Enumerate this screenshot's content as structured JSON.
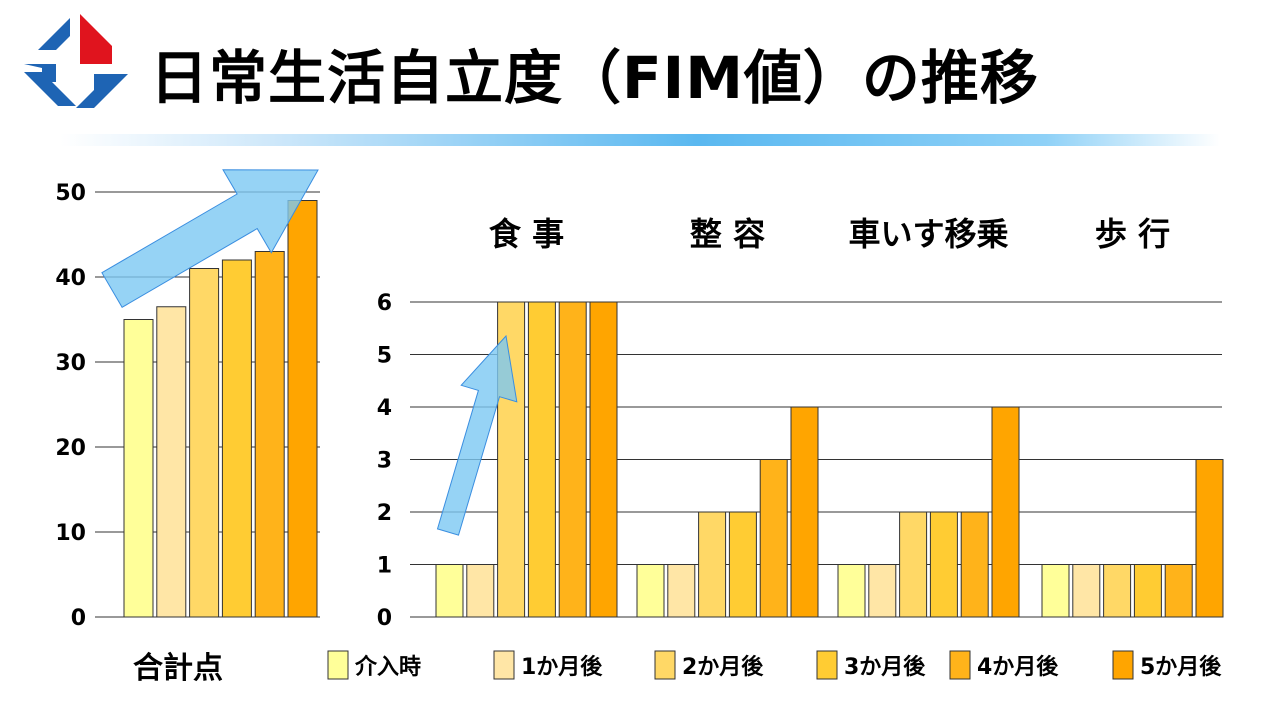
{
  "slide": {
    "title": "日常生活自立度（FIM値）の推移"
  },
  "logo": {
    "icon": "medical-cross-logo-icon",
    "colors": [
      "#e0141e",
      "#1e64b4"
    ]
  },
  "colors": {
    "series": [
      "#ffff99",
      "#ffe6a6",
      "#ffd866",
      "#ffcc33",
      "#ffb31a",
      "#ffa500"
    ],
    "bar_stroke": "#333333",
    "grid": "#333333",
    "arrow_fill": "#7cc8f2",
    "arrow_stroke": "#3a8ee0"
  },
  "chart_data": [
    {
      "type": "bar",
      "title": "",
      "xlabel": "合計点",
      "ylabel": "",
      "ylim": [
        0,
        50
      ],
      "yticks": [
        0,
        10,
        20,
        30,
        40,
        50
      ],
      "grid": true,
      "categories": [
        "介入時",
        "1か月後",
        "2か月後",
        "3か月後",
        "4か月後",
        "5か月後"
      ],
      "values": [
        35,
        36.5,
        41,
        42,
        43,
        49
      ]
    },
    {
      "type": "bar",
      "title": "",
      "ylim": [
        0,
        6
      ],
      "yticks": [
        0,
        1,
        2,
        3,
        4,
        5,
        6
      ],
      "grid": true,
      "categories": [
        "食 事",
        "整 容",
        "車いす移乗",
        "歩 行"
      ],
      "series": [
        {
          "name": "介入時",
          "values": [
            1,
            1,
            1,
            1
          ]
        },
        {
          "name": "1か月後",
          "values": [
            1,
            1,
            1,
            1
          ]
        },
        {
          "name": "2か月後",
          "values": [
            6,
            2,
            2,
            1
          ]
        },
        {
          "name": "3か月後",
          "values": [
            6,
            2,
            2,
            1
          ]
        },
        {
          "name": "4か月後",
          "values": [
            6,
            3,
            2,
            1
          ]
        },
        {
          "name": "5か月後",
          "values": [
            6,
            4,
            4,
            3
          ]
        }
      ],
      "legend": "bottom"
    }
  ]
}
